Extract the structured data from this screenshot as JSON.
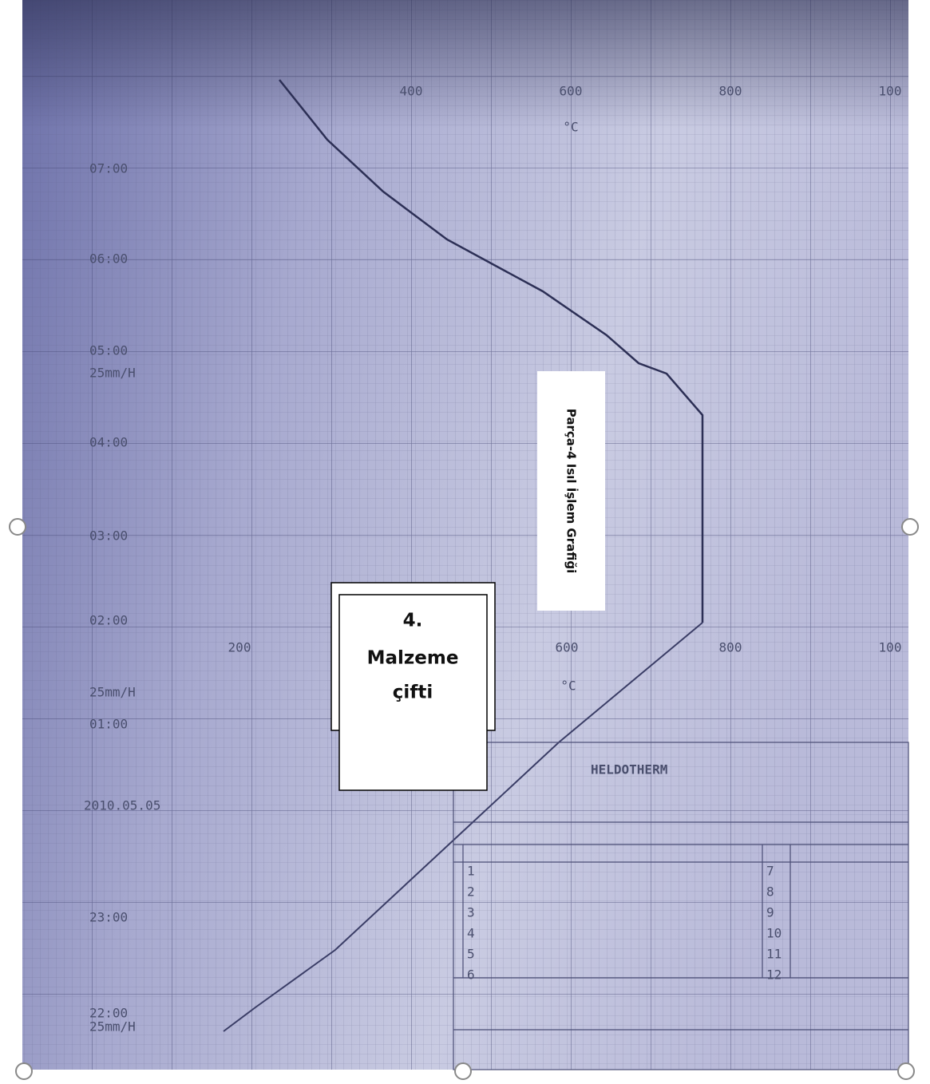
{
  "recorder": {
    "time_labels": [
      "07:00",
      "06:00",
      "05:00",
      "25mm/H",
      "04:00",
      "03:00",
      "02:00",
      "25mm/H",
      "01:00",
      "2010.05.05",
      "23:00",
      "22:00",
      "25mm/H"
    ],
    "temperature_labels_top": [
      "400",
      "600",
      "800",
      "100"
    ],
    "unit_top": "°C",
    "temperature_labels_middle": [
      "200",
      "600",
      "800",
      "100"
    ],
    "unit_middle": "°C"
  },
  "logo": {
    "brand": "HELDOTHERM",
    "row_numbers_left": [
      "1",
      "2",
      "3",
      "4",
      "5",
      "6"
    ],
    "row_numbers_right": [
      "7",
      "8",
      "9",
      "10",
      "11",
      "12"
    ]
  },
  "title_box": {
    "text": "Parça-4 Isıl İşlem Grafiği"
  },
  "label_box": {
    "lines": [
      "4.",
      "Malzeme",
      "çifti"
    ]
  }
}
